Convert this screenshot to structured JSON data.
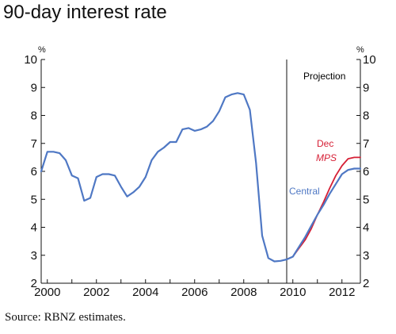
{
  "chart_data": {
    "type": "line",
    "title": "90-day interest rate",
    "source": "Source: RBNZ estimates.",
    "y_unit_left": "%",
    "y_unit_right": "%",
    "ylim": [
      2,
      10
    ],
    "xlim": [
      1999.75,
      2012.75
    ],
    "yticks": [
      2,
      3,
      4,
      5,
      6,
      7,
      8,
      9,
      10
    ],
    "xticks": [
      2000,
      2002,
      2004,
      2006,
      2008,
      2010,
      2012
    ],
    "projection_start": 2009.75,
    "annotations": {
      "projection": "Projection",
      "dec": "Dec",
      "mps": "MPS",
      "central": "Central"
    },
    "colors": {
      "central": "#4F78C4",
      "dec_mps": "#D61F35",
      "axis": "#111111",
      "projection_text": "#111111"
    },
    "series": [
      {
        "name": "Central",
        "values": [
          [
            1999.75,
            6.0
          ],
          [
            2000.0,
            6.7
          ],
          [
            2000.25,
            6.7
          ],
          [
            2000.5,
            6.65
          ],
          [
            2000.75,
            6.4
          ],
          [
            2001.0,
            5.85
          ],
          [
            2001.25,
            5.75
          ],
          [
            2001.5,
            4.95
          ],
          [
            2001.75,
            5.05
          ],
          [
            2002.0,
            5.8
          ],
          [
            2002.25,
            5.9
          ],
          [
            2002.5,
            5.9
          ],
          [
            2002.75,
            5.85
          ],
          [
            2003.0,
            5.45
          ],
          [
            2003.25,
            5.1
          ],
          [
            2003.5,
            5.25
          ],
          [
            2003.75,
            5.45
          ],
          [
            2004.0,
            5.8
          ],
          [
            2004.25,
            6.4
          ],
          [
            2004.5,
            6.7
          ],
          [
            2004.75,
            6.85
          ],
          [
            2005.0,
            7.05
          ],
          [
            2005.25,
            7.05
          ],
          [
            2005.5,
            7.5
          ],
          [
            2005.75,
            7.55
          ],
          [
            2006.0,
            7.45
          ],
          [
            2006.25,
            7.5
          ],
          [
            2006.5,
            7.6
          ],
          [
            2006.75,
            7.8
          ],
          [
            2007.0,
            8.15
          ],
          [
            2007.25,
            8.65
          ],
          [
            2007.5,
            8.75
          ],
          [
            2007.75,
            8.8
          ],
          [
            2008.0,
            8.75
          ],
          [
            2008.25,
            8.2
          ],
          [
            2008.5,
            6.3
          ],
          [
            2008.75,
            3.7
          ],
          [
            2009.0,
            2.9
          ],
          [
            2009.25,
            2.78
          ],
          [
            2009.5,
            2.8
          ],
          [
            2009.75,
            2.85
          ],
          [
            2010.0,
            2.95
          ],
          [
            2010.25,
            3.3
          ],
          [
            2010.5,
            3.65
          ],
          [
            2010.75,
            4.05
          ],
          [
            2011.0,
            4.45
          ],
          [
            2011.25,
            4.8
          ],
          [
            2011.5,
            5.2
          ],
          [
            2011.75,
            5.55
          ],
          [
            2012.0,
            5.9
          ],
          [
            2012.25,
            6.05
          ],
          [
            2012.5,
            6.1
          ],
          [
            2012.75,
            6.1
          ]
        ]
      },
      {
        "name": "Dec MPS",
        "values": [
          [
            2009.75,
            2.85
          ],
          [
            2010.0,
            2.95
          ],
          [
            2010.25,
            3.25
          ],
          [
            2010.5,
            3.55
          ],
          [
            2010.75,
            3.95
          ],
          [
            2011.0,
            4.45
          ],
          [
            2011.25,
            4.9
          ],
          [
            2011.5,
            5.4
          ],
          [
            2011.75,
            5.85
          ],
          [
            2012.0,
            6.2
          ],
          [
            2012.25,
            6.45
          ],
          [
            2012.5,
            6.5
          ],
          [
            2012.75,
            6.5
          ]
        ]
      }
    ]
  }
}
